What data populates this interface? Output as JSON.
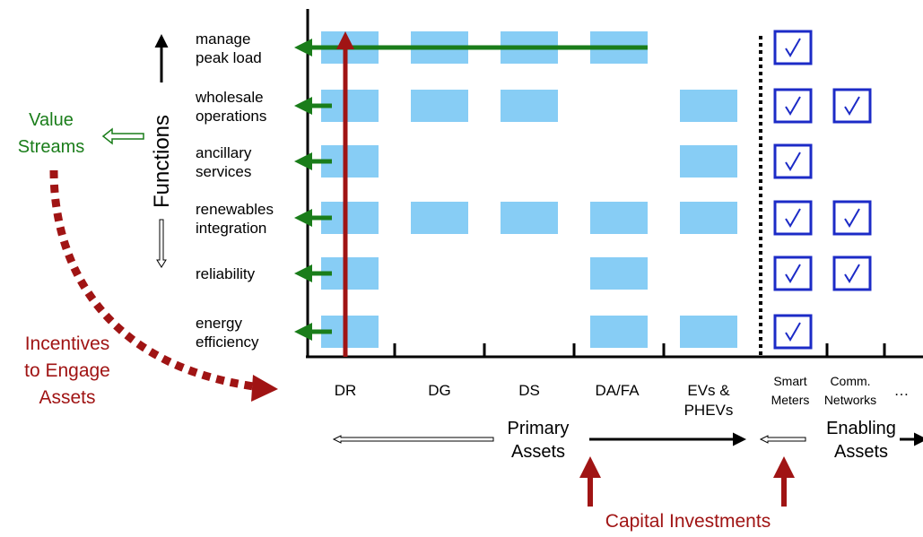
{
  "functions_label": "Functions",
  "functions": [
    [
      "manage",
      "peak load"
    ],
    [
      "wholesale",
      "operations"
    ],
    [
      "ancillary",
      "services"
    ],
    [
      "renewables",
      "integration"
    ],
    [
      "reliability"
    ],
    [
      "energy",
      "efficiency"
    ]
  ],
  "assets": [
    [
      "DR"
    ],
    [
      "DG"
    ],
    [
      "DS"
    ],
    [
      "DA/FA"
    ],
    [
      "EVs &",
      "PHEVs"
    ],
    [
      "Smart",
      "Meters"
    ],
    [
      "Comm.",
      "Networks"
    ],
    [
      "…"
    ]
  ],
  "value_streams": [
    "Value",
    "Streams"
  ],
  "incentives": [
    "Incentives",
    "to Engage",
    "Assets"
  ],
  "primary_assets": [
    "Primary",
    "Assets"
  ],
  "enabling_assets": [
    "Enabling",
    "Assets"
  ],
  "capital_investments": "Capital Investments"
}
